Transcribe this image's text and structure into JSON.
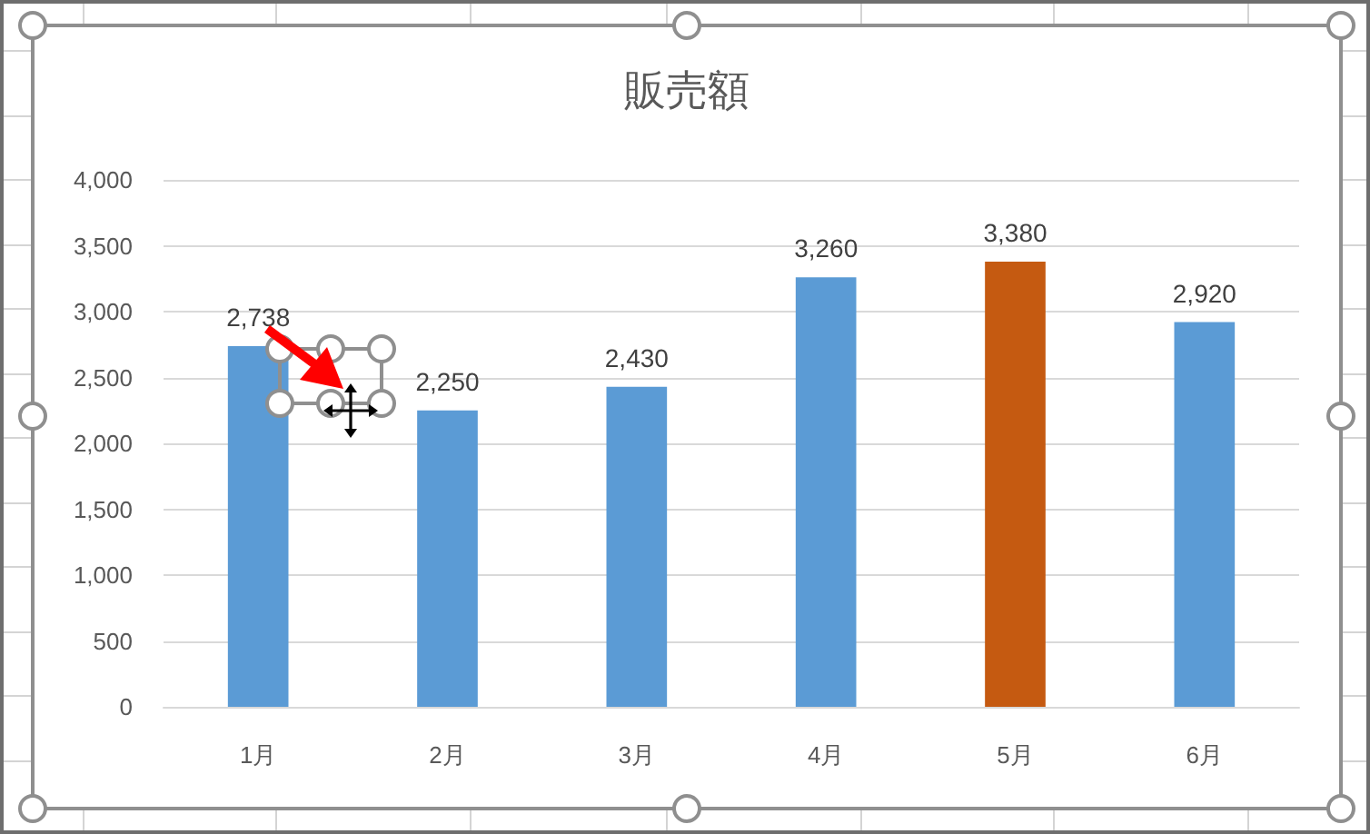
{
  "chart_data": {
    "type": "bar",
    "title": "販売額",
    "categories": [
      "1月",
      "2月",
      "3月",
      "4月",
      "5月",
      "6月"
    ],
    "values": [
      2738,
      2250,
      2430,
      3260,
      3380,
      2920
    ],
    "colors": [
      "#5b9bd5",
      "#5b9bd5",
      "#5b9bd5",
      "#5b9bd5",
      "#c55a11",
      "#5b9bd5"
    ],
    "value_labels": [
      "2,738",
      "2,250",
      "2,430",
      "3,260",
      "3,380",
      "2,920"
    ],
    "ylim": [
      0,
      4000
    ],
    "yticks": [
      0,
      {
        "value": 500,
        "label": "500"
      },
      {
        "value": 1000,
        "label": "1,000"
      },
      {
        "value": 1500,
        "label": "1,500"
      },
      {
        "value": 2000,
        "label": "2,000"
      },
      {
        "value": 2500,
        "label": "2,500"
      },
      {
        "value": 3000,
        "label": "3,000"
      },
      {
        "value": 3500,
        "label": "3,500"
      },
      {
        "value": 4000,
        "label": "4,000"
      }
    ],
    "grid": "y"
  }
}
